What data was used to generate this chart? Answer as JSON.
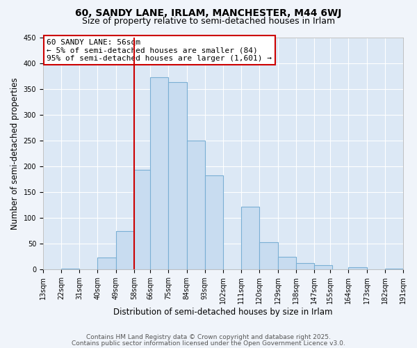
{
  "title": "60, SANDY LANE, IRLAM, MANCHESTER, M44 6WJ",
  "subtitle": "Size of property relative to semi-detached houses in Irlam",
  "xlabel": "Distribution of semi-detached houses by size in Irlam",
  "ylabel": "Number of semi-detached properties",
  "bin_lefts": [
    13,
    22,
    31,
    40,
    49,
    58,
    66,
    75,
    84,
    93,
    102,
    111,
    120,
    129,
    138,
    147,
    155,
    164,
    173,
    182
  ],
  "bin_width": 9,
  "counts": [
    0,
    2,
    0,
    23,
    75,
    193,
    373,
    363,
    250,
    183,
    0,
    122,
    53,
    25,
    13,
    8,
    0,
    5,
    0,
    2
  ],
  "bar_color": "#c8dcf0",
  "bar_edge_color": "#7aafd4",
  "vline_x": 58,
  "vline_color": "#cc0000",
  "ylim": [
    0,
    450
  ],
  "yticks": [
    0,
    50,
    100,
    150,
    200,
    250,
    300,
    350,
    400,
    450
  ],
  "xlim_left": 13,
  "xlim_right": 191,
  "tick_labels": [
    "13sqm",
    "22sqm",
    "31sqm",
    "40sqm",
    "49sqm",
    "58sqm",
    "66sqm",
    "75sqm",
    "84sqm",
    "93sqm",
    "102sqm",
    "111sqm",
    "120sqm",
    "129sqm",
    "138sqm",
    "147sqm",
    "155sqm",
    "164sqm",
    "173sqm",
    "182sqm",
    "191sqm"
  ],
  "tick_positions": [
    13,
    22,
    31,
    40,
    49,
    58,
    66,
    75,
    84,
    93,
    102,
    111,
    120,
    129,
    138,
    147,
    155,
    164,
    173,
    182,
    191
  ],
  "annotation_title": "60 SANDY LANE: 56sqm",
  "annotation_line1": "← 5% of semi-detached houses are smaller (84)",
  "annotation_line2": "95% of semi-detached houses are larger (1,601) →",
  "annotation_box_color": "white",
  "annotation_box_edge": "#cc0000",
  "footnote1": "Contains HM Land Registry data © Crown copyright and database right 2025.",
  "footnote2": "Contains public sector information licensed under the Open Government Licence v3.0.",
  "bg_color": "#f0f4fa",
  "plot_bg_color": "#dce8f5",
  "grid_color": "white",
  "title_fontsize": 10,
  "subtitle_fontsize": 9,
  "axis_label_fontsize": 8.5,
  "tick_fontsize": 7,
  "footnote_fontsize": 6.5,
  "annotation_fontsize": 8
}
